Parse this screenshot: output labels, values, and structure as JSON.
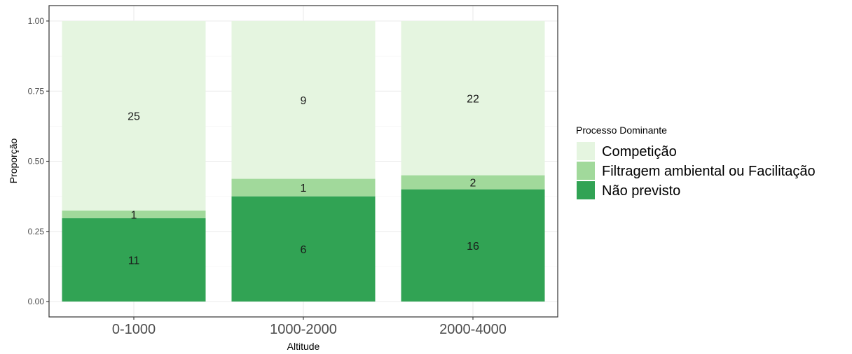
{
  "chart_data": {
    "type": "bar",
    "stacked": true,
    "normalized": true,
    "categories": [
      "0-1000",
      "1000-2000",
      "2000-4000"
    ],
    "series": [
      {
        "name": "Não previsto",
        "color": "#31a354",
        "counts": [
          11,
          6,
          16
        ]
      },
      {
        "name": "Filtragem ambiental ou Facilitação",
        "color": "#a1d99b",
        "counts": [
          1,
          1,
          2
        ]
      },
      {
        "name": "Competição",
        "color": "#e5f5e0",
        "counts": [
          25,
          9,
          22
        ]
      }
    ],
    "xlabel": "Altitude",
    "ylabel": "Proporção",
    "ylim": [
      0,
      1
    ],
    "yticks": [
      "0.00",
      "0.25",
      "0.50",
      "0.75",
      "1.00"
    ],
    "grid": true,
    "legend": {
      "title": "Processo Dominante",
      "position": "right",
      "entries": [
        "Competição",
        "Filtragem ambiental ou Facilitação",
        "Não previsto"
      ]
    }
  }
}
